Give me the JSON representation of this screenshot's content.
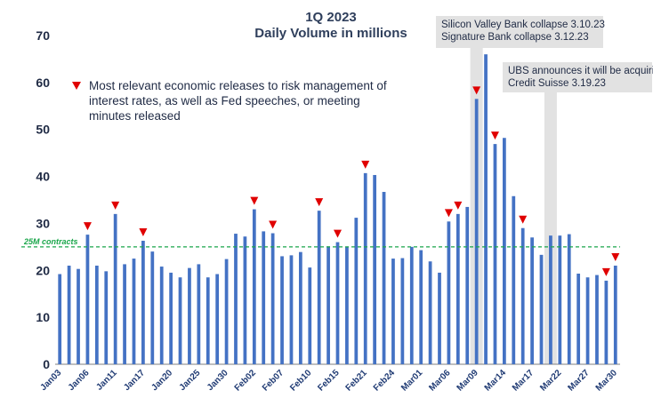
{
  "chart_data": {
    "type": "bar",
    "title_lines": [
      "1Q 2023",
      "Daily Volume in millions"
    ],
    "ylim": [
      0,
      70
    ],
    "yticks": [
      0,
      10,
      20,
      30,
      40,
      50,
      60,
      70
    ],
    "bar_color": "#4472c4",
    "marker_color": "#e00000",
    "reference_line": {
      "value": 25,
      "label": "25M contracts",
      "color": "#19a64a"
    },
    "x_tick_labels": [
      "Jan03",
      "Jan06",
      "Jan11",
      "Jan17",
      "Jan20",
      "Jan25",
      "Jan30",
      "Feb02",
      "Feb07",
      "Feb10",
      "Feb15",
      "Feb21",
      "Feb24",
      "Mar01",
      "Mar06",
      "Mar09",
      "Mar14",
      "Mar17",
      "Mar22",
      "Mar27",
      "Mar30"
    ],
    "values": [
      19.2,
      21.0,
      20.3,
      27.6,
      21.0,
      19.8,
      32.0,
      21.3,
      22.5,
      26.3,
      24.0,
      20.8,
      19.5,
      18.5,
      20.5,
      21.3,
      18.5,
      19.2,
      22.4,
      27.8,
      27.2,
      33.0,
      28.3,
      27.9,
      23.0,
      23.2,
      23.9,
      20.6,
      32.7,
      25.1,
      26.0,
      25.0,
      31.2,
      40.7,
      40.3,
      36.7,
      22.5,
      22.6,
      25.0,
      24.3,
      21.9,
      19.5,
      30.4,
      32.0,
      33.5,
      56.5,
      66.0,
      46.9,
      48.2,
      35.8,
      29.0,
      27.0,
      23.3,
      27.4,
      27.4,
      27.7,
      19.3,
      18.5,
      19.0,
      17.8,
      21.0
    ],
    "markers": [
      3,
      6,
      9,
      21,
      23,
      28,
      30,
      33,
      42,
      43,
      45,
      47,
      50,
      59,
      60
    ],
    "legend_text": [
      "Most relevant economic releases to risk management of",
      "interest rates, as well as Fed speeches, or meeting",
      "minutes released"
    ],
    "annotations": [
      {
        "bar_index": 45,
        "lines": [
          "Silicon Valley Bank collapse 3.10.23",
          "Signature Bank collapse 3.12.23"
        ]
      },
      {
        "bar_index": 53,
        "lines": [
          "UBS announces it will be acquiring",
          "Credit Suisse 3.19.23"
        ]
      }
    ]
  }
}
